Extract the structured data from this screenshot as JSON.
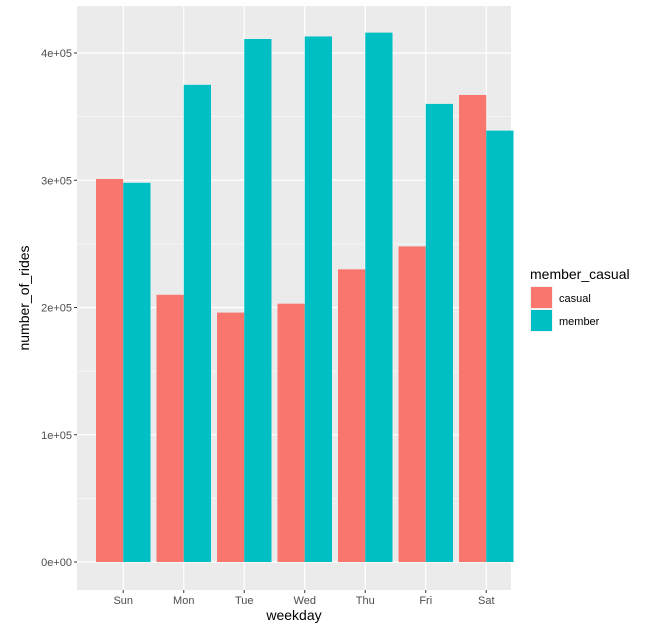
{
  "chart_data": {
    "type": "bar",
    "layout": "grouped",
    "categories": [
      "Sun",
      "Mon",
      "Tue",
      "Wed",
      "Thu",
      "Fri",
      "Sat"
    ],
    "series": [
      {
        "name": "casual",
        "color": "#F8766D",
        "values": [
          301000,
          210000,
          196000,
          203000,
          230000,
          248000,
          367000
        ]
      },
      {
        "name": "member",
        "color": "#00BFC4",
        "values": [
          298000,
          375000,
          411000,
          413000,
          416000,
          360000,
          339000
        ]
      }
    ],
    "xlabel": "weekday",
    "ylabel": "number_of_rides",
    "ylim": [
      0,
      433000
    ],
    "yticks": [
      0,
      100000,
      200000,
      300000,
      400000
    ],
    "ytick_labels": [
      "0e+00",
      "1e+05",
      "2e+05",
      "3e+05",
      "4e+05"
    ],
    "legend": {
      "title": "member_casual",
      "position": "right"
    },
    "grid": true,
    "panel_background": "#EBEBEB"
  }
}
